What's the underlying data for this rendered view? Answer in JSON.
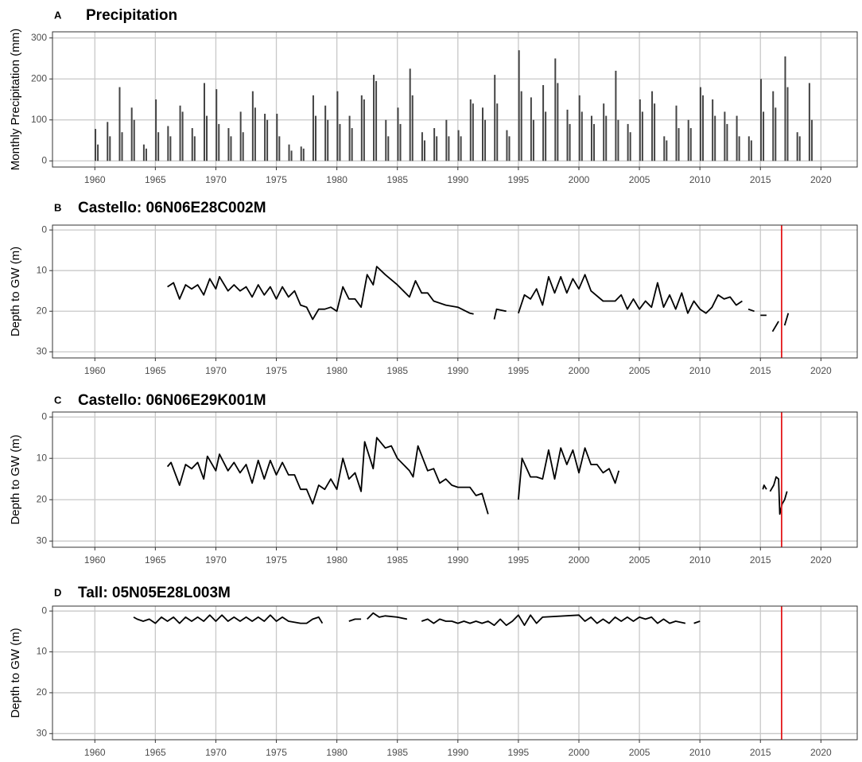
{
  "chart_data": [
    {
      "type": "bar",
      "tag": "A",
      "title": "Precipitation",
      "y_label": "Monthly Precipitation (mm)",
      "color": "#444444",
      "grid": true,
      "xlim": [
        1956.5,
        2023
      ],
      "xticks": [
        1960,
        1965,
        1970,
        1975,
        1980,
        1985,
        1990,
        1995,
        2000,
        2005,
        2010,
        2015,
        2020
      ],
      "ylim": [
        -15,
        315
      ],
      "yticks": [
        0,
        100,
        200,
        300
      ],
      "x": [
        1960.05,
        1960.25,
        1961.05,
        1961.25,
        1962.05,
        1962.25,
        1963.05,
        1963.25,
        1964.05,
        1964.25,
        1965.05,
        1965.25,
        1966.05,
        1966.25,
        1967.05,
        1967.25,
        1968.05,
        1968.25,
        1969.05,
        1969.25,
        1970.05,
        1970.25,
        1971.05,
        1971.25,
        1972.05,
        1972.25,
        1973.05,
        1973.25,
        1974.05,
        1974.25,
        1975.05,
        1975.25,
        1976.05,
        1976.25,
        1977.05,
        1977.25,
        1978.05,
        1978.25,
        1979.05,
        1979.25,
        1980.05,
        1980.25,
        1981.05,
        1981.25,
        1982.05,
        1982.25,
        1983.05,
        1983.25,
        1984.05,
        1984.25,
        1985.05,
        1985.25,
        1986.05,
        1986.25,
        1987.05,
        1987.25,
        1988.05,
        1988.25,
        1989.05,
        1989.25,
        1990.05,
        1990.25,
        1991.05,
        1991.25,
        1992.05,
        1992.25,
        1993.05,
        1993.25,
        1994.05,
        1994.25,
        1995.05,
        1995.25,
        1996.05,
        1996.25,
        1997.05,
        1997.25,
        1998.05,
        1998.25,
        1999.05,
        1999.25,
        2000.05,
        2000.25,
        2001.05,
        2001.25,
        2002.05,
        2002.25,
        2003.05,
        2003.25,
        2004.05,
        2004.25,
        2005.05,
        2005.25,
        2006.05,
        2006.25,
        2007.05,
        2007.25,
        2008.05,
        2008.25,
        2009.05,
        2009.25,
        2010.05,
        2010.25,
        2011.05,
        2011.25,
        2012.05,
        2012.25,
        2013.05,
        2013.25,
        2014.05,
        2014.25,
        2015.05,
        2015.25,
        2016.05,
        2016.25,
        2017.05,
        2017.25,
        2018.05,
        2018.25,
        2019.05,
        2019.25
      ],
      "values": [
        78,
        40,
        95,
        60,
        180,
        70,
        130,
        100,
        40,
        30,
        150,
        70,
        85,
        60,
        135,
        120,
        80,
        60,
        190,
        110,
        175,
        90,
        80,
        60,
        120,
        70,
        170,
        130,
        115,
        100,
        115,
        60,
        40,
        25,
        35,
        30,
        160,
        110,
        135,
        100,
        170,
        90,
        110,
        80,
        160,
        150,
        210,
        195,
        100,
        60,
        130,
        90,
        225,
        160,
        70,
        50,
        80,
        60,
        100,
        60,
        75,
        60,
        150,
        140,
        130,
        100,
        210,
        140,
        75,
        60,
        270,
        170,
        155,
        100,
        185,
        120,
        250,
        190,
        125,
        90,
        160,
        120,
        110,
        90,
        140,
        110,
        220,
        100,
        90,
        70,
        150,
        120,
        170,
        140,
        60,
        50,
        135,
        80,
        100,
        80,
        180,
        160,
        150,
        110,
        120,
        90,
        110,
        60,
        60,
        50,
        200,
        120,
        170,
        130,
        255,
        180,
        70,
        60,
        190,
        100
      ]
    },
    {
      "type": "line",
      "tag": "B",
      "title": "Castello: 06N06E28C002M",
      "y_label": "Depth to GW (m)",
      "color": "#000000",
      "grid": true,
      "xlim": [
        1956.5,
        2023
      ],
      "xticks": [
        1960,
        1965,
        1970,
        1975,
        1980,
        1985,
        1990,
        1995,
        2000,
        2005,
        2010,
        2015,
        2020
      ],
      "ylim": [
        31.5,
        -1.2
      ],
      "yticks": [
        0,
        10,
        20,
        30
      ],
      "vline": {
        "x": 2016.75,
        "color": "#e41a1c"
      },
      "x": [
        1966,
        1966.5,
        1967,
        1967.5,
        1968,
        1968.5,
        1969,
        1969.5,
        1970,
        1970.3,
        1971,
        1971.5,
        1972,
        1972.5,
        1973,
        1973.5,
        1974,
        1974.5,
        1975,
        1975.5,
        1976,
        1976.5,
        1977,
        1977.5,
        1978,
        1978.5,
        1979,
        1979.5,
        1980,
        1980.5,
        1981,
        1981.5,
        1982,
        1982.5,
        1983,
        1983.3,
        1984,
        1985,
        1986,
        1986.5,
        1987,
        1987.5,
        1988,
        1989,
        1990,
        1991,
        1991.3,
        null,
        1993,
        1993.2,
        1994,
        null,
        1995,
        1995.5,
        1996,
        1996.5,
        1997,
        1997.5,
        1998,
        1998.5,
        1999,
        1999.5,
        2000,
        2000.5,
        2001,
        2002,
        2003,
        2003.5,
        2004,
        2004.5,
        2005,
        2005.5,
        2006,
        2006.5,
        2007,
        2007.5,
        2008,
        2008.5,
        2009,
        2009.5,
        2010,
        2010.5,
        2011,
        2011.5,
        2012,
        2012.5,
        2013,
        2013.5,
        null,
        2014,
        2014.5,
        null,
        2015,
        2015.5,
        null,
        2016,
        2016.5,
        null,
        2017,
        2017.3
      ],
      "values": [
        14,
        13,
        17,
        13.5,
        14.5,
        13.5,
        16,
        12,
        14.5,
        11.5,
        15,
        13.5,
        15,
        14,
        16.5,
        13.5,
        16,
        14,
        17,
        14,
        16.5,
        15,
        18.5,
        19,
        22,
        19.5,
        19.5,
        19,
        20,
        14,
        17,
        17,
        19,
        11,
        13.5,
        9,
        11,
        13.5,
        16.5,
        12.5,
        15.5,
        15.5,
        17.5,
        18.5,
        19,
        20.5,
        20.7,
        null,
        22,
        19.5,
        20,
        null,
        20.5,
        16,
        17,
        14.5,
        18.5,
        11.5,
        15.5,
        11.5,
        15.5,
        12,
        14.5,
        11,
        15,
        17.5,
        17.5,
        16,
        19.5,
        17,
        19.5,
        17.5,
        19,
        13,
        19,
        16,
        19.5,
        15.5,
        20.5,
        17.5,
        19.5,
        20.5,
        19,
        16,
        17,
        16.5,
        18.5,
        17.5,
        null,
        19.5,
        20,
        null,
        21,
        21,
        null,
        25,
        22.5,
        null,
        23.5,
        20.5
      ]
    },
    {
      "type": "line",
      "tag": "C",
      "title": "Castello: 06N06E29K001M",
      "y_label": "Depth to GW (m)",
      "color": "#000000",
      "grid": true,
      "xlim": [
        1956.5,
        2023
      ],
      "xticks": [
        1960,
        1965,
        1970,
        1975,
        1980,
        1985,
        1990,
        1995,
        2000,
        2005,
        2010,
        2015,
        2020
      ],
      "ylim": [
        31.5,
        -1.2
      ],
      "yticks": [
        0,
        10,
        20,
        30
      ],
      "vline": {
        "x": 2016.75,
        "color": "#e41a1c"
      },
      "x": [
        1966,
        1966.3,
        1967,
        1967.5,
        1968,
        1968.5,
        1969,
        1969.3,
        1970,
        1970.3,
        1971,
        1971.5,
        1972,
        1972.5,
        1973,
        1973.5,
        1974,
        1974.5,
        1975,
        1975.5,
        1976,
        1976.5,
        1977,
        1977.5,
        1978,
        1978.5,
        1979,
        1979.5,
        1980,
        1980.5,
        1981,
        1981.5,
        1982,
        1982.3,
        1983,
        1983.3,
        1984,
        1984.5,
        1985,
        1986,
        1986.3,
        1986.7,
        1987.5,
        1988,
        1988.5,
        1989,
        1989.5,
        1990,
        1991,
        1991.5,
        1992,
        1992.5,
        null,
        1995,
        1995.3,
        1996,
        1996.5,
        1997,
        1997.5,
        1998,
        1998.5,
        1999,
        1999.5,
        2000,
        2000.5,
        2001,
        2001.5,
        2002,
        2002.5,
        2003,
        2003.3,
        null,
        2015.2,
        2015.3,
        2015.5,
        null,
        2015.8,
        2016.1,
        2016.3,
        2016.5,
        2016.6,
        2016.8,
        2017,
        2017.2
      ],
      "values": [
        12,
        11,
        16.5,
        11.5,
        12.5,
        11,
        15,
        9.5,
        13,
        9,
        13,
        11,
        13.5,
        11.5,
        16,
        10.5,
        15,
        10.5,
        14,
        11,
        14,
        14,
        17.5,
        17.5,
        21,
        16.5,
        17.5,
        15,
        17.5,
        10,
        15,
        13.5,
        18,
        6,
        12.5,
        5,
        7.5,
        7,
        10,
        13,
        14.5,
        7,
        13,
        12.5,
        16,
        15,
        16.5,
        17,
        17,
        19,
        18.5,
        23.5,
        null,
        20,
        10,
        14.5,
        14.5,
        15,
        8,
        15,
        7.5,
        11.5,
        8,
        13.5,
        7.5,
        11.5,
        11.5,
        13.5,
        12.5,
        16,
        13,
        null,
        17.5,
        16.5,
        17.5,
        null,
        18,
        16.5,
        14.5,
        15,
        23.5,
        21,
        20,
        18
      ]
    },
    {
      "type": "line",
      "tag": "D",
      "title": "Tall: 05N05E28L003M",
      "y_label": "Depth to GW (m)",
      "color": "#000000",
      "grid": true,
      "xlim": [
        1956.5,
        2023
      ],
      "xticks": [
        1960,
        1965,
        1970,
        1975,
        1980,
        1985,
        1990,
        1995,
        2000,
        2005,
        2010,
        2015,
        2020
      ],
      "ylim": [
        31.5,
        -1.2
      ],
      "yticks": [
        0,
        10,
        20,
        30
      ],
      "vline": {
        "x": 2016.75,
        "color": "#e41a1c"
      },
      "x": [
        1963.2,
        1963.5,
        1964,
        1964.5,
        1965,
        1965.5,
        1966,
        1966.5,
        1967,
        1967.5,
        1968,
        1968.5,
        1969,
        1969.5,
        1970,
        1970.5,
        1971,
        1971.5,
        1972,
        1972.5,
        1973,
        1973.5,
        1974,
        1974.5,
        1975,
        1975.5,
        1976,
        1977,
        1977.5,
        1978,
        1978.5,
        1978.8,
        null,
        1981,
        1981.5,
        1982,
        null,
        1982.5,
        1983,
        1983.5,
        1984,
        1985,
        1985.8,
        null,
        1987,
        1987.5,
        1988,
        1988.5,
        1989,
        1989.5,
        1990,
        1990.5,
        1991,
        1991.5,
        1992,
        1992.5,
        1993,
        1993.5,
        1994,
        1994.5,
        1995,
        1995.5,
        1996,
        1996.5,
        1997,
        2000,
        2000.5,
        2001,
        2001.5,
        2002,
        2002.5,
        2003,
        2003.5,
        2004,
        2004.5,
        2005,
        2005.5,
        2006,
        2006.5,
        2007,
        2007.5,
        2008,
        2008.8,
        null,
        2009.5,
        2010
      ],
      "values": [
        1.5,
        2,
        2.5,
        2,
        3,
        1.5,
        2.5,
        1.5,
        3,
        1.5,
        2.5,
        1.5,
        2.5,
        1,
        2.5,
        1,
        2.5,
        1.5,
        2.5,
        1.5,
        2.5,
        1.5,
        2.5,
        1,
        2.5,
        1.5,
        2.5,
        3,
        3,
        2,
        1.5,
        3,
        null,
        2.5,
        2,
        2,
        null,
        2,
        0.5,
        1.5,
        1.2,
        1.5,
        2,
        null,
        2.5,
        2,
        3,
        2,
        2.5,
        2.5,
        3,
        2.5,
        3,
        2.5,
        3,
        2.5,
        3.5,
        2,
        3.5,
        2.5,
        1,
        3.5,
        1,
        3,
        1.5,
        1,
        2.5,
        1.5,
        3,
        2,
        3,
        1.5,
        2.5,
        1.5,
        2.5,
        1.5,
        2,
        1.5,
        3,
        2,
        3,
        2.5,
        3,
        null,
        3,
        2.5
      ]
    }
  ]
}
